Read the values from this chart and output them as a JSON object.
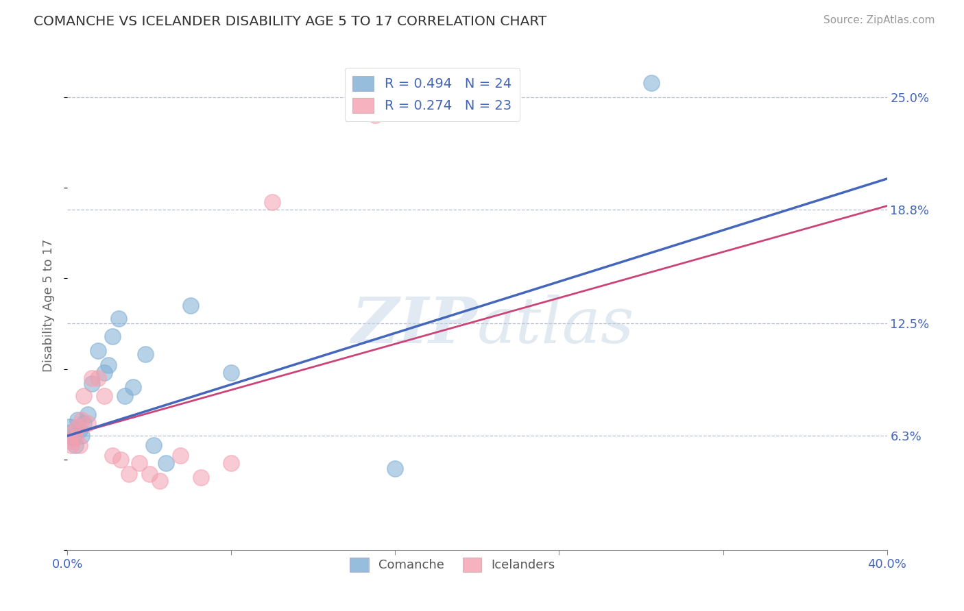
{
  "title": "COMANCHE VS ICELANDER DISABILITY AGE 5 TO 17 CORRELATION CHART",
  "source": "Source: ZipAtlas.com",
  "ylabel": "Disability Age 5 to 17",
  "xlim": [
    0.0,
    0.4
  ],
  "ylim": [
    0.0,
    0.27
  ],
  "ytick_positions": [
    0.063,
    0.125,
    0.188,
    0.25
  ],
  "ytick_labels": [
    "6.3%",
    "12.5%",
    "18.8%",
    "25.0%"
  ],
  "grid_color": "#b0b8c8",
  "background_color": "#ffffff",
  "comanche_color": "#7dadd4",
  "icelander_color": "#f4a0b0",
  "comanche_line_color": "#4466bb",
  "icelander_line_color": "#cc4477",
  "legend_R1_text": "R = 0.494   N = 24",
  "legend_R2_text": "R = 0.274   N = 23",
  "comanche_x": [
    0.001,
    0.002,
    0.003,
    0.004,
    0.005,
    0.006,
    0.007,
    0.008,
    0.01,
    0.012,
    0.015,
    0.018,
    0.02,
    0.022,
    0.025,
    0.028,
    0.032,
    0.038,
    0.042,
    0.048,
    0.06,
    0.08,
    0.16,
    0.285
  ],
  "comanche_y": [
    0.068,
    0.065,
    0.062,
    0.058,
    0.072,
    0.066,
    0.063,
    0.07,
    0.075,
    0.092,
    0.11,
    0.098,
    0.102,
    0.118,
    0.128,
    0.085,
    0.09,
    0.108,
    0.058,
    0.048,
    0.135,
    0.098,
    0.045,
    0.258
  ],
  "icelander_x": [
    0.001,
    0.002,
    0.003,
    0.004,
    0.005,
    0.006,
    0.007,
    0.008,
    0.01,
    0.012,
    0.015,
    0.018,
    0.022,
    0.026,
    0.03,
    0.035,
    0.04,
    0.045,
    0.055,
    0.065,
    0.08,
    0.1,
    0.15
  ],
  "icelander_y": [
    0.06,
    0.058,
    0.065,
    0.062,
    0.068,
    0.058,
    0.072,
    0.085,
    0.07,
    0.095,
    0.095,
    0.085,
    0.052,
    0.05,
    0.042,
    0.048,
    0.042,
    0.038,
    0.052,
    0.04,
    0.048,
    0.192,
    0.24
  ],
  "line_x_start": 0.0,
  "line_x_end": 0.4,
  "comanche_line_y_start": 0.063,
  "comanche_line_y_end": 0.205,
  "icelander_line_y_start": 0.063,
  "icelander_line_y_end": 0.19
}
